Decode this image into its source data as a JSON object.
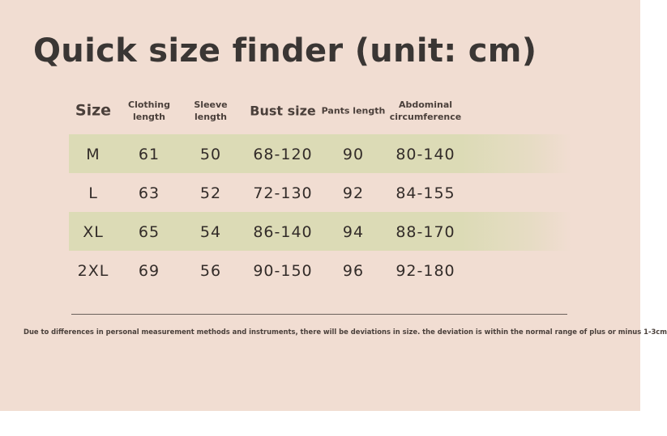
{
  "title": "Quick size finder (unit: cm)",
  "colors": {
    "background": "#f1ddd2",
    "row_highlight": "#dcdbb6",
    "text": "#3a3330"
  },
  "table": {
    "headers": [
      "Size",
      "Clothing\nlength",
      "Sleeve\nlength",
      "Bust size",
      "Pants length",
      "Abdominal\ncircumference"
    ],
    "rows": [
      [
        "M",
        "61",
        "50",
        "68-120",
        "90",
        "80-140"
      ],
      [
        "L",
        "63",
        "52",
        "72-130",
        "92",
        "84-155"
      ],
      [
        "XL",
        "65",
        "54",
        "86-140",
        "94",
        "88-170"
      ],
      [
        "2XL",
        "69",
        "56",
        "90-150",
        "96",
        "92-180"
      ]
    ]
  },
  "note": "Due to differences in personal measurement methods and instruments, there will be deviations in size. the deviation is within the normal range of plus or minus 1-3cm"
}
